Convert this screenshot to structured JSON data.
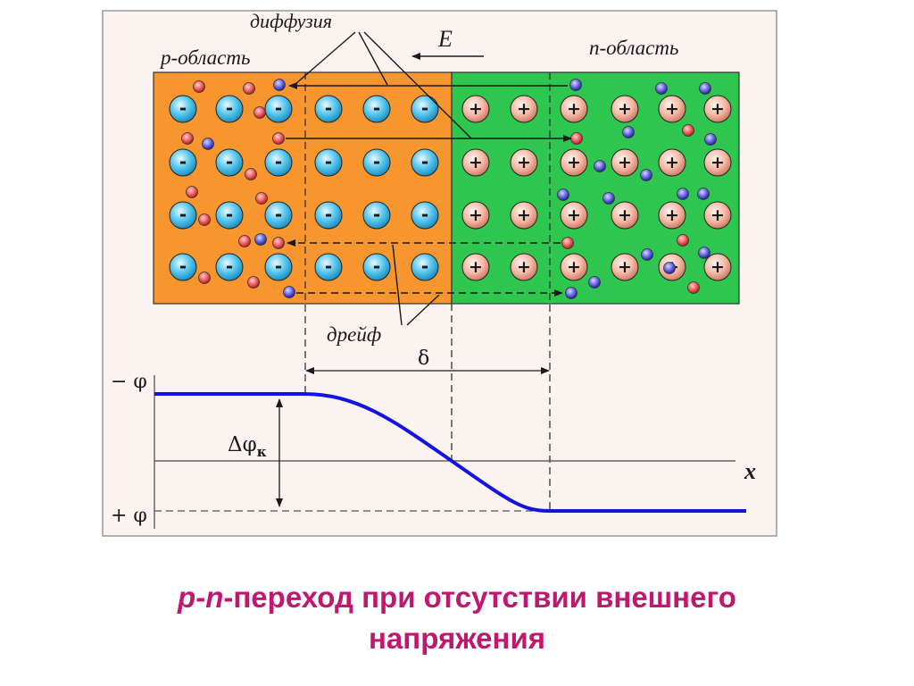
{
  "labels": {
    "p_region": "p-область",
    "n_region": "n-область",
    "diffusion": "диффузия",
    "drift": "дрейф",
    "field": "E",
    "delta": "δ",
    "minus_phi": "− φ",
    "plus_phi": "+ φ",
    "delta_phi": "Δφ",
    "delta_phi_sub": "к",
    "x_axis": "x"
  },
  "ion_signs": {
    "acceptor": "-",
    "donor": "+"
  },
  "colors": {
    "p_region": "#f7962e",
    "n_region": "#2ec64e",
    "acceptor_ion": "#58c7ee",
    "donor_ion": "#f4b8a4",
    "hole": "#ee5858",
    "electron": "#5858d8",
    "potential_curve": "#1414e0",
    "caption": "#c0186e",
    "frame_bg": "#faf3f0"
  },
  "caption": {
    "p": "p",
    "dash": "-",
    "n": "n",
    "line1_rest": "-переход при отсутствии внешнего",
    "line2": "напряжения"
  }
}
